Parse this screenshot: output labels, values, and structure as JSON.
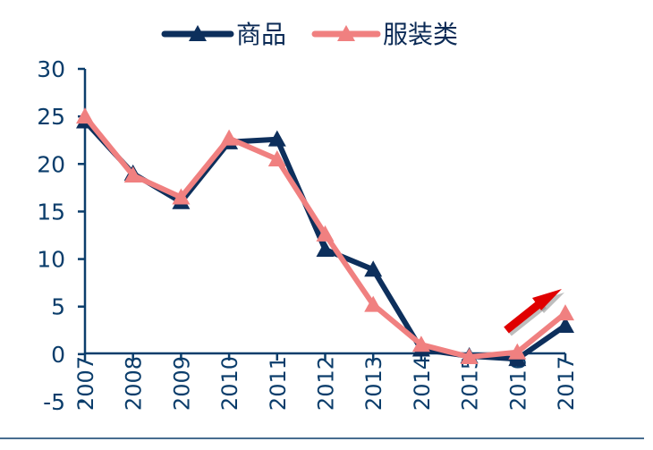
{
  "chart_data": {
    "type": "line",
    "categories": [
      "2007",
      "2008",
      "2009",
      "2010",
      "2011",
      "2012",
      "2013",
      "2014",
      "2015",
      "2016",
      "2017"
    ],
    "series": [
      {
        "name": "商品",
        "color": "#0d2f5c",
        "marker": "triangle",
        "values": [
          24.5,
          19.0,
          16.0,
          22.3,
          22.6,
          11.0,
          8.9,
          0.5,
          -0.2,
          -0.5,
          3.0
        ]
      },
      {
        "name": "服装类",
        "color": "#f08080",
        "marker": "triangle",
        "values": [
          25.0,
          18.8,
          16.5,
          22.7,
          20.5,
          12.6,
          5.2,
          1.0,
          -0.3,
          0.2,
          4.3
        ]
      }
    ],
    "yticks": [
      "30",
      "25",
      "20",
      "15",
      "10",
      "5",
      "0",
      "-5"
    ],
    "ylim": [
      -5,
      30
    ],
    "grid": false,
    "legend_position": "top",
    "annotation": {
      "type": "arrow",
      "color": "#e00000",
      "direction": "up-right",
      "near": "2016-2017"
    }
  }
}
